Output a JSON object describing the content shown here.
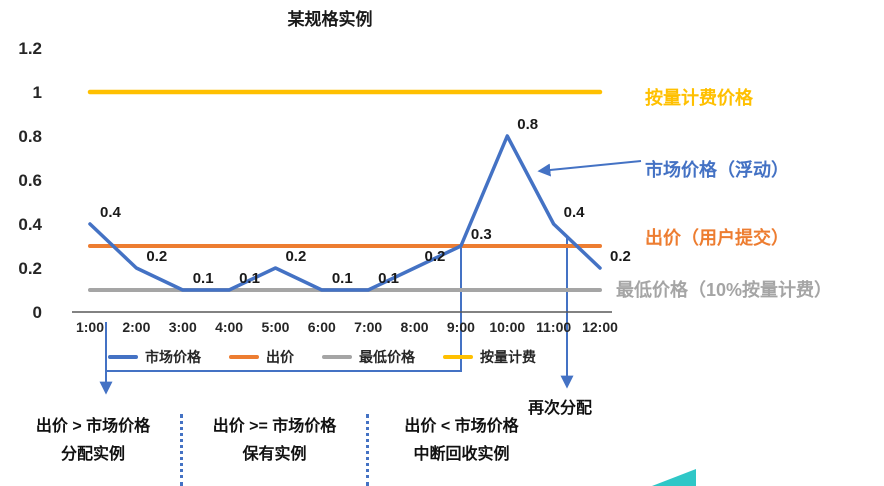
{
  "chart_data": {
    "type": "line",
    "title": "某规格实例",
    "x": [
      "1:00",
      "2:00",
      "3:00",
      "4:00",
      "5:00",
      "6:00",
      "7:00",
      "8:00",
      "9:00",
      "10:00",
      "11:00",
      "12:00"
    ],
    "ylim": [
      0,
      1.2
    ],
    "yticks": [
      0,
      0.2,
      0.4,
      0.6,
      0.8,
      1,
      1.2
    ],
    "grid": false,
    "legend_position": "bottom",
    "series": [
      {
        "name": "市场价格",
        "color": "#4472C4",
        "width": 3.5,
        "labels": true,
        "values": [
          0.4,
          0.2,
          0.1,
          0.1,
          0.2,
          0.1,
          0.1,
          0.2,
          0.3,
          0.8,
          0.4,
          0.2
        ]
      },
      {
        "name": "出价",
        "color": "#ED7D31",
        "width": 4,
        "values": [
          0.3,
          0.3,
          0.3,
          0.3,
          0.3,
          0.3,
          0.3,
          0.3,
          0.3,
          0.3,
          0.3,
          0.3
        ]
      },
      {
        "name": "最低价格",
        "color": "#A5A5A5",
        "width": 4,
        "values": [
          0.1,
          0.1,
          0.1,
          0.1,
          0.1,
          0.1,
          0.1,
          0.1,
          0.1,
          0.1,
          0.1,
          0.1
        ]
      },
      {
        "name": "按量计费",
        "color": "#FFC000",
        "width": 4.5,
        "values": [
          1,
          1,
          1,
          1,
          1,
          1,
          1,
          1,
          1,
          1,
          1,
          1
        ]
      }
    ]
  },
  "annotations": {
    "right": [
      {
        "text": "按量计费价格",
        "color": "#FFC000"
      },
      {
        "text": "市场价格（浮动）",
        "color": "#4472C4"
      },
      {
        "text": "出价（用户提交）",
        "color": "#ED7D31"
      },
      {
        "text": "最低价格（10%按量计费）",
        "color": "#A5A5A5"
      }
    ],
    "reallocate": "再次分配",
    "zones": [
      {
        "condition": "出价 > 市场价格",
        "action": "分配实例"
      },
      {
        "condition": "出价 >= 市场价格",
        "action": "保有实例"
      },
      {
        "condition": "出价 < 市场价格",
        "action": "中断回收实例"
      }
    ]
  }
}
